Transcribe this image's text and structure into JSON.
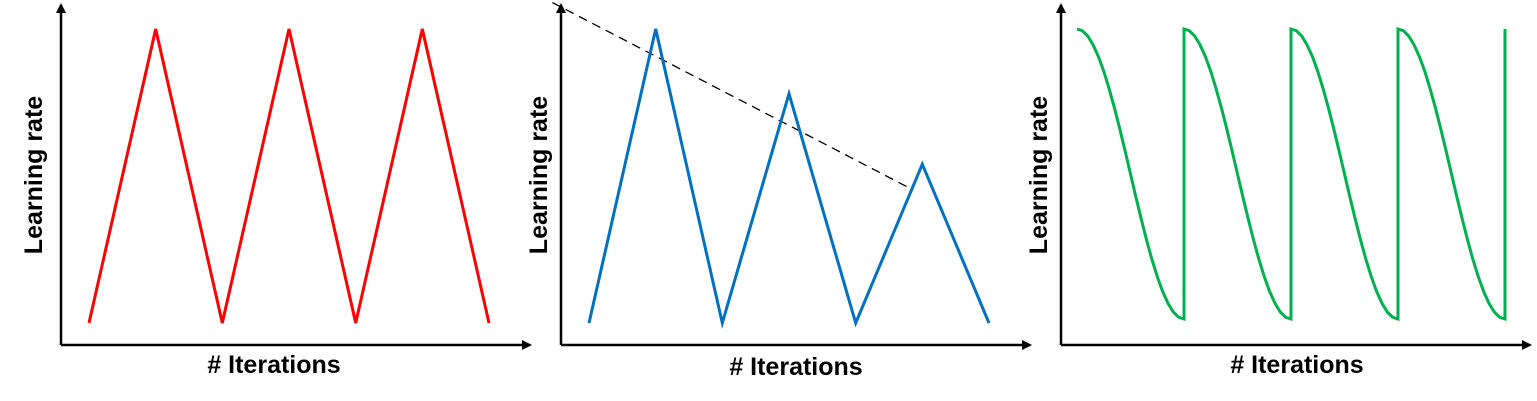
{
  "chart_data": [
    {
      "type": "line",
      "xlabel": "# Iterations",
      "ylabel": "Learning rate",
      "xlim": [
        0,
        6
      ],
      "ylim": [
        0,
        1
      ],
      "series": [
        {
          "color": "#ff0000",
          "x": [
            0,
            1,
            2,
            3,
            4,
            5,
            6
          ],
          "y": [
            0,
            1,
            0,
            1,
            0,
            1,
            0
          ]
        }
      ]
    },
    {
      "type": "line",
      "xlabel": "# Iterations",
      "ylabel": "Learning rate",
      "xlim": [
        0,
        6
      ],
      "ylim": [
        0,
        1
      ],
      "series": [
        {
          "color": "#0070c0",
          "x": [
            0,
            1,
            2,
            3,
            4,
            5,
            6
          ],
          "y": [
            0,
            1,
            0,
            0.78,
            0,
            0.54,
            0
          ]
        }
      ],
      "guide_line": {
        "style": "dashed",
        "color": "#000000",
        "x": [
          -0.55,
          4.8
        ],
        "y": [
          1.09,
          0.46
        ]
      }
    },
    {
      "type": "line",
      "xlabel": "# Iterations",
      "ylabel": "Learning rate",
      "xlim": [
        0,
        4
      ],
      "ylim": [
        0,
        1
      ],
      "series": [
        {
          "color": "#00b050",
          "x": [
            0,
            0.05,
            0.1,
            0.15,
            0.2,
            0.25,
            0.3,
            0.35,
            0.4,
            0.45,
            0.5,
            0.55,
            0.6,
            0.65,
            0.7,
            0.75,
            0.8,
            0.85,
            0.9,
            0.95,
            1,
            1,
            1.05,
            1.1,
            1.15,
            1.2,
            1.25,
            1.3,
            1.35,
            1.4,
            1.45,
            1.5,
            1.55,
            1.6,
            1.65,
            1.7,
            1.75,
            1.8,
            1.85,
            1.9,
            1.95,
            2,
            2,
            2.05,
            2.1,
            2.15,
            2.2,
            2.25,
            2.3,
            2.35,
            2.4,
            2.45,
            2.5,
            2.55,
            2.6,
            2.65,
            2.7,
            2.75,
            2.8,
            2.85,
            2.9,
            2.95,
            3,
            3,
            3.05,
            3.1,
            3.15,
            3.2,
            3.25,
            3.3,
            3.35,
            3.4,
            3.45,
            3.5,
            3.55,
            3.6,
            3.65,
            3.7,
            3.75,
            3.8,
            3.85,
            3.9,
            3.95,
            4,
            4,
            4.0
          ],
          "y": [
            1,
            0.994,
            0.976,
            0.946,
            0.905,
            0.854,
            0.794,
            0.727,
            0.655,
            0.578,
            0.5,
            0.422,
            0.345,
            0.273,
            0.206,
            0.146,
            0.095,
            0.054,
            0.024,
            0.006,
            0,
            1,
            0.994,
            0.976,
            0.946,
            0.905,
            0.854,
            0.794,
            0.727,
            0.655,
            0.578,
            0.5,
            0.422,
            0.345,
            0.273,
            0.206,
            0.146,
            0.095,
            0.054,
            0.024,
            0.006,
            0,
            1,
            0.994,
            0.976,
            0.946,
            0.905,
            0.854,
            0.794,
            0.727,
            0.655,
            0.578,
            0.5,
            0.422,
            0.345,
            0.273,
            0.206,
            0.146,
            0.095,
            0.054,
            0.024,
            0.006,
            0,
            1,
            0.994,
            0.976,
            0.946,
            0.905,
            0.854,
            0.794,
            0.727,
            0.655,
            0.578,
            0.5,
            0.422,
            0.345,
            0.273,
            0.206,
            0.146,
            0.095,
            0.054,
            0.024,
            0.006,
            0,
            1,
            1
          ]
        }
      ]
    }
  ]
}
